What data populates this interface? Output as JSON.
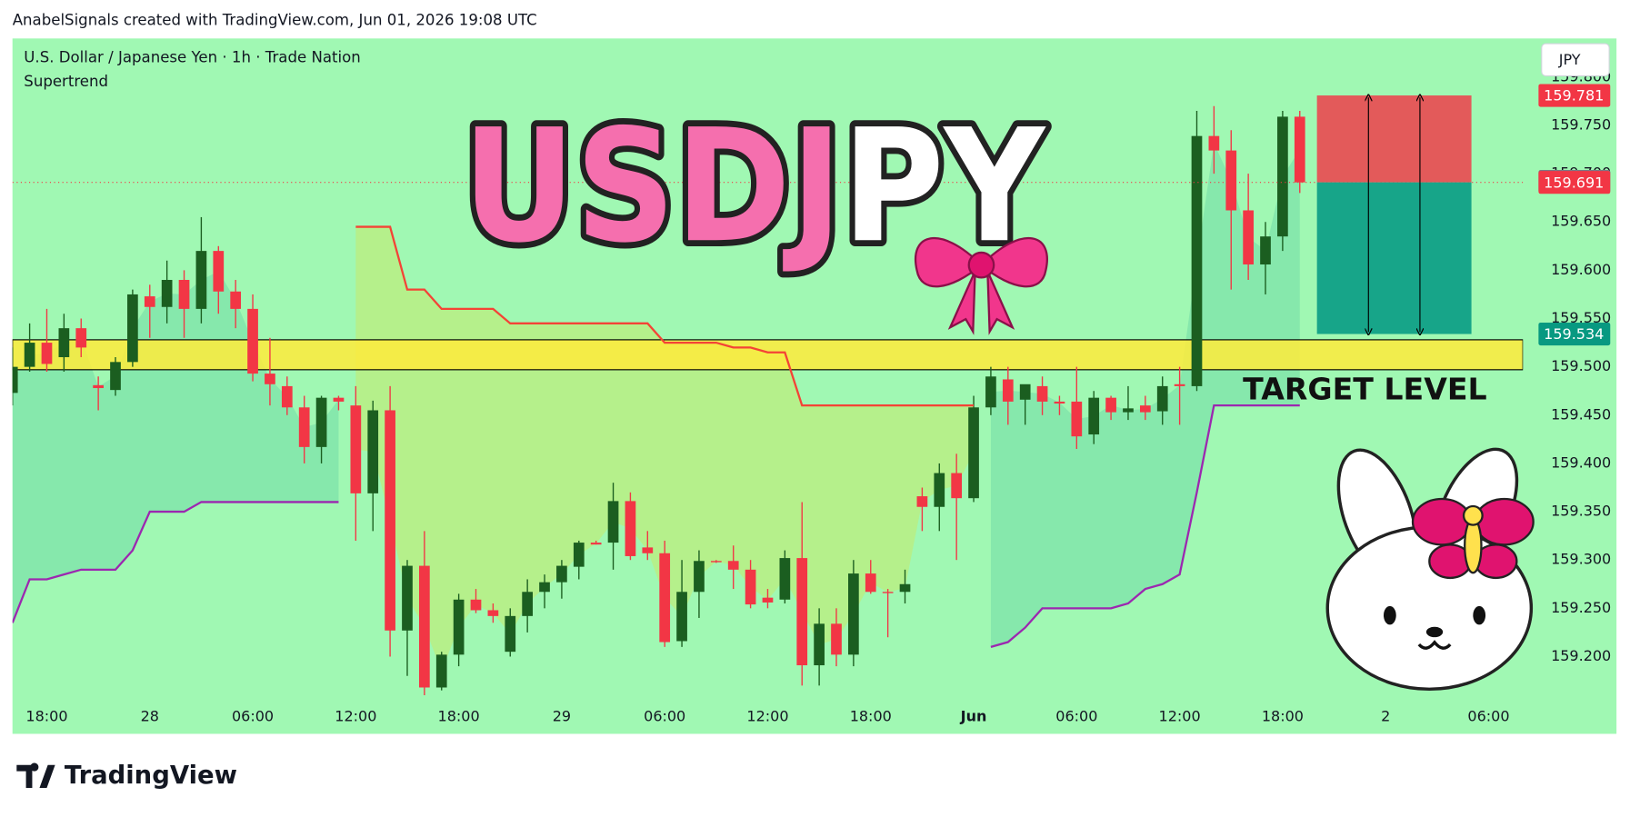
{
  "header": {
    "attribution": "AnabelSignals created with TradingView.com, Jun 01, 2026 19:08 UTC"
  },
  "chart_data": {
    "type": "candlestick",
    "title": "U.S. Dollar / Japanese Yen · 1h · Trade Nation",
    "overlay_title": "USDJPY",
    "annotation": "TARGET LEVEL",
    "currency": "JPY",
    "up_color": "#1b5e20",
    "down_color": "#f23645",
    "open": [
      159.473,
      159.5,
      159.525,
      159.51,
      159.54,
      159.481,
      159.476,
      159.505,
      159.573,
      159.562,
      159.59,
      159.56,
      159.62,
      159.578,
      159.56,
      159.493,
      159.48,
      159.458,
      159.417,
      159.468,
      159.46,
      159.369,
      159.455,
      159.227,
      159.294,
      159.168,
      159.202,
      159.259,
      159.248,
      159.205,
      159.242,
      159.267,
      159.277,
      159.293,
      159.318,
      159.318,
      159.361,
      159.313,
      159.307,
      159.216,
      159.267,
      159.299,
      159.299,
      159.29,
      159.261,
      159.259,
      159.302,
      159.191,
      159.234,
      159.202,
      159.286,
      159.267,
      159.267,
      159.366,
      159.355,
      159.39,
      159.364,
      159.458,
      159.487,
      159.466,
      159.48,
      159.464,
      159.464,
      159.43,
      159.468,
      159.453,
      159.46,
      159.454,
      159.482,
      159.48,
      159.739,
      159.724,
      159.662,
      159.606,
      159.635,
      159.759
    ],
    "high": [
      159.52,
      159.545,
      159.56,
      159.555,
      159.55,
      159.49,
      159.51,
      159.58,
      159.585,
      159.61,
      159.6,
      159.655,
      159.625,
      159.59,
      159.575,
      159.53,
      159.49,
      159.47,
      159.47,
      159.47,
      159.48,
      159.465,
      159.48,
      159.3,
      159.33,
      159.205,
      159.265,
      159.27,
      159.255,
      159.25,
      159.28,
      159.285,
      159.3,
      159.32,
      159.32,
      159.38,
      159.37,
      159.33,
      159.32,
      159.3,
      159.31,
      159.3,
      159.315,
      159.3,
      159.27,
      159.31,
      159.36,
      159.25,
      159.25,
      159.3,
      159.3,
      159.27,
      159.29,
      159.375,
      159.4,
      159.41,
      159.47,
      159.5,
      159.5,
      159.48,
      159.49,
      159.47,
      159.5,
      159.475,
      159.47,
      159.48,
      159.47,
      159.49,
      159.5,
      159.765,
      159.77,
      159.745,
      159.7,
      159.65,
      159.765,
      159.765
    ],
    "low": [
      159.46,
      159.495,
      159.495,
      159.495,
      159.51,
      159.455,
      159.47,
      159.5,
      159.53,
      159.545,
      159.53,
      159.545,
      159.555,
      159.54,
      159.485,
      159.46,
      159.45,
      159.4,
      159.4,
      159.455,
      159.32,
      159.33,
      159.2,
      159.18,
      159.16,
      159.165,
      159.19,
      159.245,
      159.235,
      159.2,
      159.225,
      159.25,
      159.26,
      159.28,
      159.316,
      159.29,
      159.3,
      159.3,
      159.21,
      159.21,
      159.24,
      159.297,
      159.27,
      159.25,
      159.25,
      159.255,
      159.17,
      159.17,
      159.19,
      159.19,
      159.265,
      159.22,
      159.255,
      159.33,
      159.33,
      159.3,
      159.36,
      159.45,
      159.44,
      159.44,
      159.45,
      159.45,
      159.415,
      159.42,
      159.445,
      159.445,
      159.445,
      159.44,
      159.44,
      159.475,
      159.7,
      159.58,
      159.59,
      159.575,
      159.62,
      159.68
    ],
    "close": [
      159.5,
      159.525,
      159.503,
      159.54,
      159.52,
      159.478,
      159.505,
      159.575,
      159.562,
      159.59,
      159.56,
      159.62,
      159.578,
      159.56,
      159.493,
      159.482,
      159.458,
      159.417,
      159.468,
      159.464,
      159.369,
      159.455,
      159.227,
      159.294,
      159.168,
      159.202,
      159.259,
      159.248,
      159.242,
      159.242,
      159.267,
      159.277,
      159.294,
      159.318,
      159.316,
      159.361,
      159.304,
      159.307,
      159.215,
      159.267,
      159.299,
      159.298,
      159.29,
      159.254,
      159.256,
      159.302,
      159.191,
      159.234,
      159.202,
      159.286,
      159.267,
      159.266,
      159.275,
      159.355,
      159.39,
      159.364,
      159.458,
      159.49,
      159.464,
      159.482,
      159.464,
      159.462,
      159.428,
      159.468,
      159.453,
      159.457,
      159.453,
      159.48,
      159.48,
      159.739,
      159.724,
      159.662,
      159.606,
      159.635,
      159.759,
      159.691
    ],
    "supertrend": {
      "name": "Supertrend",
      "up_color": "#9c27b0",
      "down_color": "#f44336",
      "up_fill": "rgba(0,150,136,0.16)",
      "down_fill": "rgba(255,214,0,0.22)",
      "up_values": [
        159.235,
        159.28,
        159.28,
        159.285,
        159.29,
        159.29,
        159.29,
        159.31,
        159.35,
        159.35,
        159.35,
        159.36,
        159.36,
        159.36,
        159.36,
        159.36,
        159.36,
        159.36,
        159.36,
        159.36,
        null,
        null,
        null,
        null,
        null,
        null,
        null,
        null,
        null,
        null,
        null,
        null,
        null,
        null,
        null,
        null,
        null,
        null,
        null,
        null,
        null,
        null,
        null,
        null,
        null,
        null,
        null,
        null,
        null,
        null,
        null,
        null,
        null,
        null,
        null,
        null,
        null,
        159.21,
        159.215,
        159.23,
        159.25,
        159.25,
        159.25,
        159.25,
        159.25,
        159.255,
        159.27,
        159.275,
        159.285,
        159.37,
        159.46,
        159.46,
        159.46,
        159.46,
        159.46,
        159.46
      ],
      "down_values": [
        null,
        null,
        null,
        null,
        null,
        null,
        null,
        null,
        null,
        null,
        null,
        null,
        null,
        null,
        null,
        null,
        null,
        null,
        null,
        null,
        159.645,
        159.645,
        159.645,
        159.58,
        159.58,
        159.56,
        159.56,
        159.56,
        159.56,
        159.545,
        159.545,
        159.545,
        159.545,
        159.545,
        159.545,
        159.545,
        159.545,
        159.545,
        159.525,
        159.525,
        159.525,
        159.525,
        159.52,
        159.52,
        159.515,
        159.515,
        159.46,
        159.46,
        159.46,
        159.46,
        159.46,
        159.46,
        159.46,
        159.46,
        159.46,
        159.46,
        159.46,
        null,
        null,
        null,
        null,
        null,
        null,
        null,
        null,
        null,
        null,
        null,
        null,
        null,
        null,
        null,
        null,
        null,
        null,
        null
      ]
    },
    "zone": {
      "low": 159.497,
      "high": 159.528,
      "color": "#ffeb3b"
    },
    "position": {
      "entry": 159.691,
      "stop": 159.781,
      "target": 159.534,
      "start": 76,
      "end": 85,
      "stop_color": "#e35a5a",
      "target_color": "#17a589"
    },
    "price_labels": [
      {
        "value": 159.781,
        "label": "159.781",
        "color": "#f23645"
      },
      {
        "value": 159.692,
        "label": "159.692",
        "color": "#787b86"
      },
      {
        "value": 159.691,
        "label": "159.691",
        "color": "#f23645"
      },
      {
        "value": 159.534,
        "label": "159.534",
        "color": "#089981"
      }
    ],
    "xlim": [
      0,
      88
    ],
    "xticks": [
      {
        "value": 2,
        "label": "18:00"
      },
      {
        "value": 8,
        "label": "28"
      },
      {
        "value": 14,
        "label": "06:00"
      },
      {
        "value": 20,
        "label": "12:00"
      },
      {
        "value": 26,
        "label": "18:00"
      },
      {
        "value": 32,
        "label": "29"
      },
      {
        "value": 38,
        "label": "06:00"
      },
      {
        "value": 44,
        "label": "12:00"
      },
      {
        "value": 50,
        "label": "18:00"
      },
      {
        "value": 56,
        "label": "Jun",
        "bold": true
      },
      {
        "value": 62,
        "label": "06:00"
      },
      {
        "value": 68,
        "label": "12:00"
      },
      {
        "value": 74,
        "label": "18:00"
      },
      {
        "value": 80,
        "label": "2"
      },
      {
        "value": 86,
        "label": "06:00"
      }
    ],
    "ylim": [
      159.12,
      159.84
    ],
    "yticks": [
      {
        "value": 159.2,
        "label": "159.200"
      },
      {
        "value": 159.25,
        "label": "159.250"
      },
      {
        "value": 159.3,
        "label": "159.300"
      },
      {
        "value": 159.35,
        "label": "159.350"
      },
      {
        "value": 159.4,
        "label": "159.400"
      },
      {
        "value": 159.45,
        "label": "159.450"
      },
      {
        "value": 159.5,
        "label": "159.500"
      },
      {
        "value": 159.55,
        "label": "159.550"
      },
      {
        "value": 159.6,
        "label": "159.600"
      },
      {
        "value": 159.65,
        "label": "159.650"
      },
      {
        "value": 159.7,
        "label": "159.700"
      },
      {
        "value": 159.75,
        "label": "159.750"
      },
      {
        "value": 159.8,
        "label": "159.800"
      }
    ]
  },
  "footer": {
    "logo": "TradingView"
  }
}
